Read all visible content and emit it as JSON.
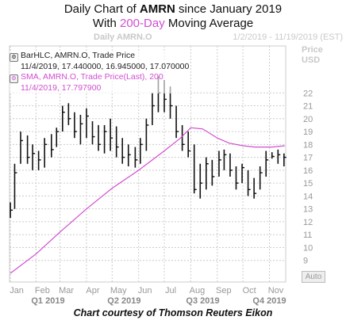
{
  "header": {
    "title_prefix": "Daily Chart of ",
    "title_ticker": "AMRN",
    "title_suffix": " since January 2019",
    "subtitle_prefix": "With ",
    "subtitle_ma": "200-Day",
    "subtitle_suffix": " Moving Average",
    "series_label": "Daily AMRN.O",
    "date_range": "1/2/2019 - 11/19/2019 (EST)",
    "price_label_1": "Price",
    "price_label_2": "USD"
  },
  "legend": {
    "bar_line1": "BarHLC, AMRN.O, Trade Price",
    "bar_line2": "11/4/2019, 17.440000, 16.945000, 17.070000",
    "sma_line1": "SMA, AMRN.O, Trade Price(Last),  200",
    "sma_line2": "11/4/2019, 17.797900"
  },
  "auto_button": "Auto",
  "caption": "Chart courtesy of Thomson Reuters Eikon",
  "colors": {
    "bars": "#111111",
    "sma": "#d04fd0",
    "grid": "#cccccc",
    "axis_text": "#c9c9c9"
  },
  "chart_data": {
    "type": "line",
    "title": "Daily Chart of AMRN since January 2019",
    "subtitle": "With 200-Day Moving Average",
    "ylim": [
      8,
      23
    ],
    "y_ticks": [
      22,
      21,
      20,
      19,
      18,
      17,
      16,
      15,
      14,
      13,
      12,
      11,
      10,
      9
    ],
    "x_ticks": [
      "Jan",
      "Feb",
      "Mar",
      "Apr",
      "May",
      "Jun",
      "Jul",
      "Aug",
      "Sep",
      "Oct",
      "Nov"
    ],
    "quarters": [
      "Q1 2019",
      "Q2 2019",
      "Q3 2019",
      "Q4 2019"
    ],
    "grid": true,
    "series": [
      {
        "name": "BarHLC, AMRN.O, Trade Price",
        "kind": "hlc_bars",
        "x": [
          "2019-01-02",
          "2019-01-07",
          "2019-01-14",
          "2019-01-22",
          "2019-01-28",
          "2019-02-04",
          "2019-02-11",
          "2019-02-19",
          "2019-02-25",
          "2019-03-04",
          "2019-03-11",
          "2019-03-18",
          "2019-03-25",
          "2019-04-01",
          "2019-04-08",
          "2019-04-15",
          "2019-04-22",
          "2019-04-29",
          "2019-05-06",
          "2019-05-13",
          "2019-05-20",
          "2019-05-28",
          "2019-06-03",
          "2019-06-10",
          "2019-06-17",
          "2019-06-24",
          "2019-07-01",
          "2019-07-08",
          "2019-07-15",
          "2019-07-22",
          "2019-07-29",
          "2019-08-05",
          "2019-08-12",
          "2019-08-19",
          "2019-08-26",
          "2019-09-03",
          "2019-09-09",
          "2019-09-16",
          "2019-09-23",
          "2019-09-30",
          "2019-10-07",
          "2019-10-14",
          "2019-10-21",
          "2019-10-28",
          "2019-11-04",
          "2019-11-11",
          "2019-11-18"
        ],
        "high": [
          13.5,
          16.5,
          19.0,
          18.7,
          18.0,
          17.5,
          18.5,
          18.8,
          19.3,
          21.0,
          21.2,
          20.5,
          20.3,
          20.8,
          19.8,
          19.5,
          19.5,
          20.0,
          19.4,
          18.5,
          18.0,
          17.8,
          18.5,
          20.0,
          22.0,
          23.3,
          23.0,
          22.5,
          21.0,
          19.5,
          19.0,
          18.0,
          16.5,
          17.0,
          16.8,
          17.5,
          17.6,
          17.3,
          16.3,
          16.5,
          16.0,
          15.4,
          16.3,
          17.5,
          17.4,
          17.6,
          17.3
        ],
        "low": [
          12.3,
          13.0,
          16.5,
          16.5,
          16.0,
          16.0,
          16.2,
          17.0,
          17.8,
          19.0,
          19.5,
          18.5,
          18.0,
          18.5,
          18.0,
          17.5,
          17.3,
          17.5,
          17.0,
          16.5,
          16.3,
          16.2,
          16.5,
          17.5,
          19.5,
          20.5,
          20.5,
          20.0,
          18.5,
          17.5,
          17.0,
          14.2,
          13.8,
          14.5,
          14.8,
          15.5,
          16.0,
          15.5,
          14.5,
          15.0,
          14.0,
          13.8,
          14.5,
          15.5,
          16.9,
          16.5,
          16.3
        ],
        "close": [
          12.9,
          15.8,
          18.3,
          17.0,
          17.3,
          16.8,
          18.0,
          17.6,
          19.0,
          20.5,
          20.0,
          19.0,
          19.6,
          20.2,
          18.6,
          18.0,
          19.0,
          18.5,
          17.8,
          17.0,
          17.2,
          16.8,
          18.0,
          19.5,
          21.0,
          22.0,
          21.5,
          21.0,
          19.0,
          18.0,
          17.5,
          14.5,
          15.0,
          16.5,
          15.5,
          16.8,
          17.2,
          16.0,
          15.0,
          16.2,
          14.5,
          14.2,
          15.8,
          16.8,
          17.07,
          17.2,
          17.0
        ]
      },
      {
        "name": "SMA, AMRN.O, Trade Price(Last),  200",
        "kind": "line",
        "x": [
          "2019-01-02",
          "2019-02-01",
          "2019-03-01",
          "2019-04-01",
          "2019-05-01",
          "2019-06-01",
          "2019-07-01",
          "2019-07-20",
          "2019-08-01",
          "2019-08-15",
          "2019-09-01",
          "2019-09-15",
          "2019-10-01",
          "2019-10-15",
          "2019-11-04",
          "2019-11-19"
        ],
        "values": [
          8.0,
          9.5,
          11.2,
          13.0,
          14.6,
          16.0,
          17.5,
          18.5,
          19.3,
          19.2,
          18.5,
          18.1,
          17.9,
          17.8,
          17.8,
          17.9
        ]
      }
    ]
  }
}
